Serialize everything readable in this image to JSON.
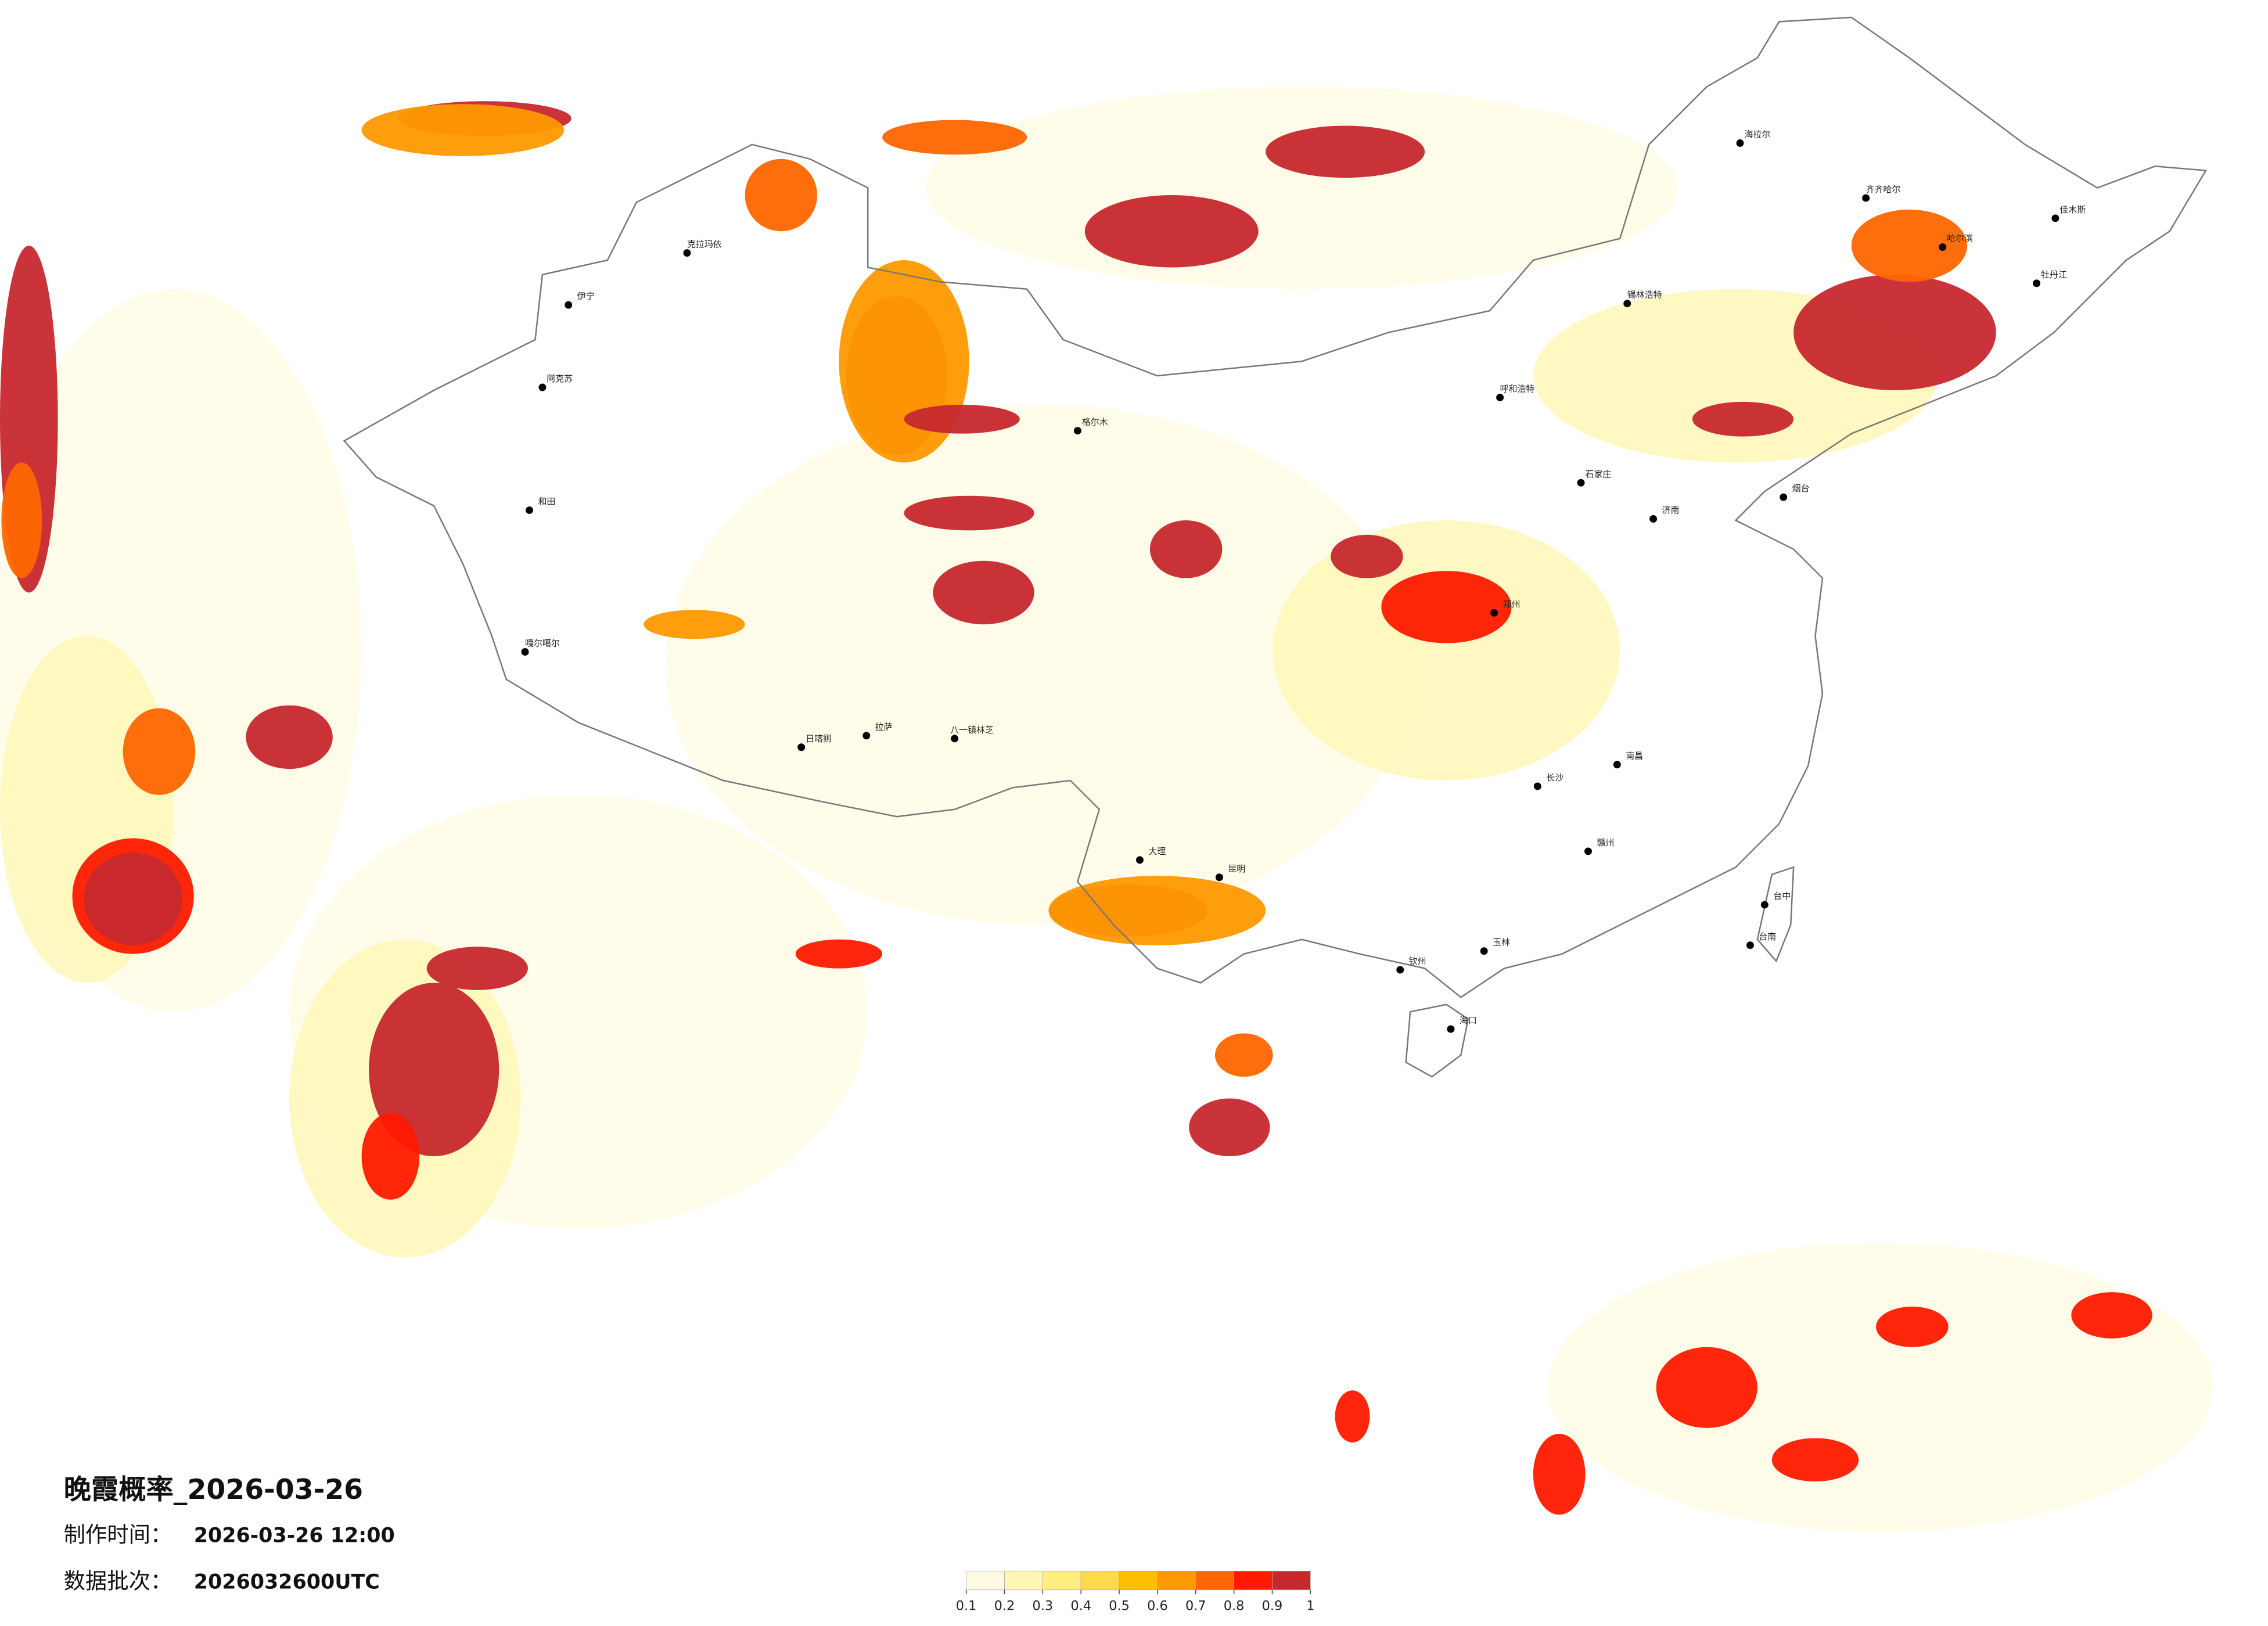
{
  "header": {
    "title": "晚霞概率_2026-03-26",
    "made_label": "制作时间：",
    "made_time": "2026-03-26 12:00",
    "batch_label": "数据批次：",
    "batch": "2026032600UTC"
  },
  "colorbar": {
    "ticks": [
      0.1,
      0.2,
      0.3,
      0.4,
      0.5,
      0.6,
      0.7,
      0.8,
      0.9,
      1
    ],
    "colors": [
      "#fffbe3",
      "#fff6b4",
      "#ffee80",
      "#ffd94c",
      "#ffbf00",
      "#ff9900",
      "#ff6600",
      "#ff1a00",
      "#c6282e"
    ]
  },
  "cities": [
    "克拉玛依",
    "伊宁",
    "阿克苏",
    "和田",
    "嘎尔噶尔",
    "拉萨",
    "日喀则",
    "八一镇林芝",
    "格尔木",
    "海拉尔",
    "齐齐哈尔",
    "哈尔滨",
    "佳木斯",
    "牡丹江",
    "锡林浩特",
    "呼和浩特",
    "大理",
    "昆明",
    "海口",
    "台中",
    "台南",
    "钦州",
    "玉林",
    "石家庄",
    "济南",
    "烟台",
    "郑州",
    "南昌",
    "赣州",
    "长沙"
  ]
}
